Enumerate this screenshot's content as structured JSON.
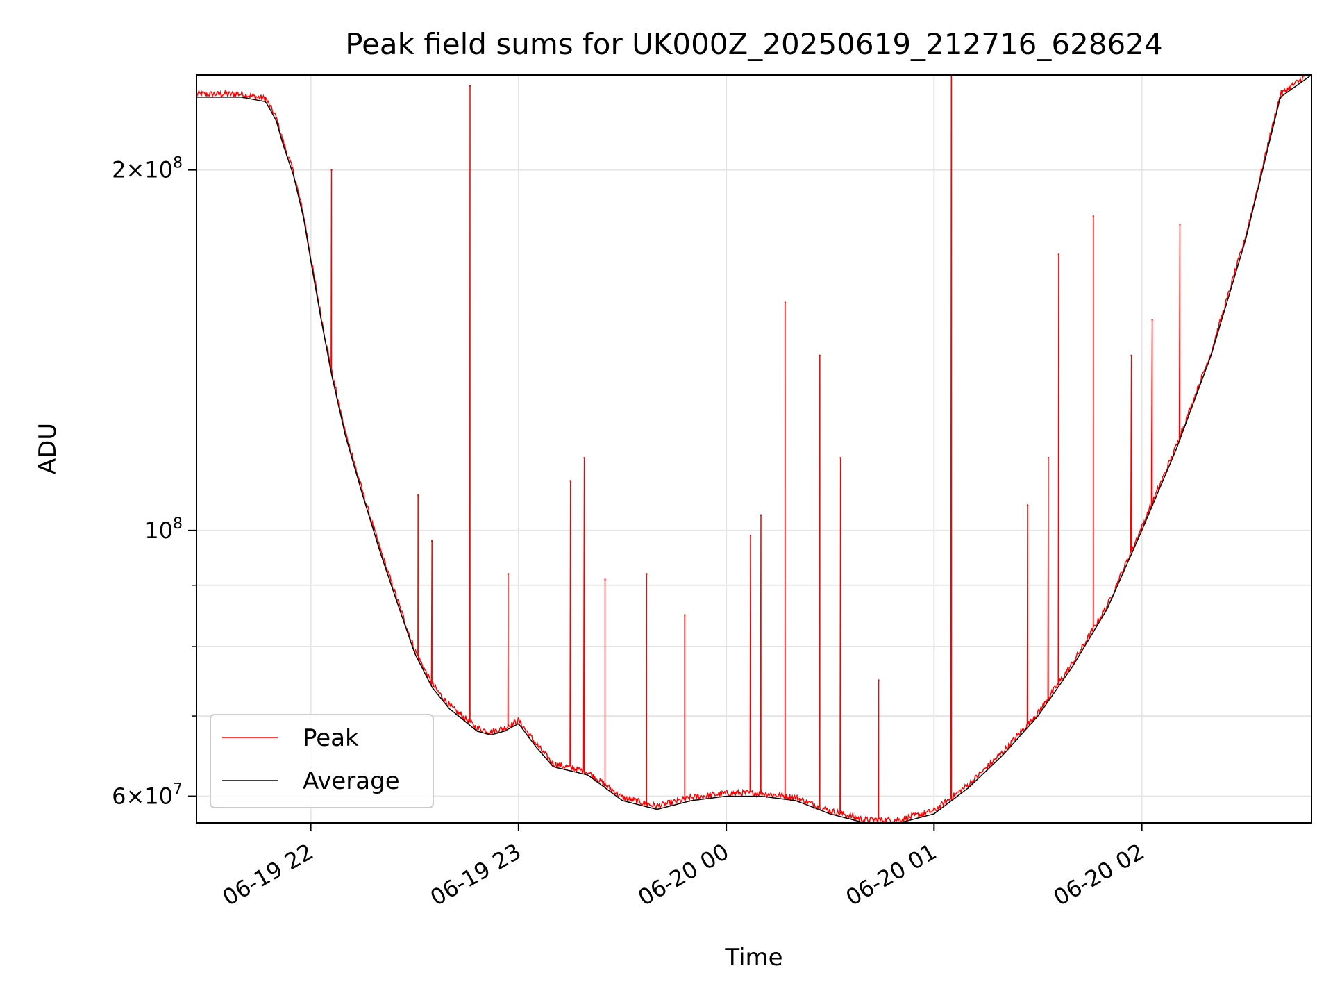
{
  "chart_data": {
    "type": "line",
    "title": "Peak field sums for UK000Z_20250619_212716_628624",
    "xlabel": "Time",
    "ylabel": "ADU",
    "yscale": "log",
    "xlim": [
      "2025-06-19 21:27",
      "2025-06-20 02:49"
    ],
    "ylim": [
      57000000,
      240000000
    ],
    "x_ticks": [
      {
        "t": "2025-06-19 22:00",
        "label": "06-19 22"
      },
      {
        "t": "2025-06-19 23:00",
        "label": "06-19 23"
      },
      {
        "t": "2025-06-20 00:00",
        "label": "06-20 00"
      },
      {
        "t": "2025-06-20 01:00",
        "label": "06-20 01"
      },
      {
        "t": "2025-06-20 02:00",
        "label": "06-20 02"
      }
    ],
    "y_ticks": [
      {
        "value": 60000000,
        "mantissa": "6",
        "exp": "7"
      },
      {
        "value": 100000000,
        "mantissa": "",
        "exp": "8"
      },
      {
        "value": 200000000,
        "mantissa": "2",
        "exp": "8"
      }
    ],
    "y_minor": [
      70000000,
      80000000,
      90000000
    ],
    "grid": true,
    "legend_position": "lower-left",
    "series": [
      {
        "name": "Average",
        "color": "#000000",
        "x": [
          "2025-06-19 21:27",
          "2025-06-19 21:40",
          "2025-06-19 21:47",
          "2025-06-19 21:50",
          "2025-06-19 21:52",
          "2025-06-19 21:55",
          "2025-06-19 21:58",
          "2025-06-19 22:00",
          "2025-06-19 22:03",
          "2025-06-19 22:06",
          "2025-06-19 22:10",
          "2025-06-19 22:15",
          "2025-06-19 22:20",
          "2025-06-19 22:25",
          "2025-06-19 22:30",
          "2025-06-19 22:35",
          "2025-06-19 22:40",
          "2025-06-19 22:44",
          "2025-06-19 22:48",
          "2025-06-19 22:52",
          "2025-06-19 22:56",
          "2025-06-19 23:00",
          "2025-06-19 23:05",
          "2025-06-19 23:10",
          "2025-06-19 23:20",
          "2025-06-19 23:30",
          "2025-06-19 23:40",
          "2025-06-19 23:50",
          "2025-06-20 00:00",
          "2025-06-20 00:10",
          "2025-06-20 00:20",
          "2025-06-20 00:30",
          "2025-06-20 00:40",
          "2025-06-20 00:50",
          "2025-06-20 01:00",
          "2025-06-20 01:10",
          "2025-06-20 01:20",
          "2025-06-20 01:30",
          "2025-06-20 01:40",
          "2025-06-20 01:50",
          "2025-06-20 02:00",
          "2025-06-20 02:10",
          "2025-06-20 02:20",
          "2025-06-20 02:30",
          "2025-06-20 02:40",
          "2025-06-20 02:49"
        ],
        "y": [
          230000000,
          230000000,
          228000000,
          220000000,
          210000000,
          198000000,
          182000000,
          168000000,
          150000000,
          135000000,
          120000000,
          107000000,
          96000000,
          87000000,
          79000000,
          74000000,
          71000000,
          69500000,
          68000000,
          67500000,
          68000000,
          69000000,
          66000000,
          63500000,
          62500000,
          59500000,
          58500000,
          59500000,
          60000000,
          60000000,
          59500000,
          58000000,
          57000000,
          57000000,
          58000000,
          61000000,
          65000000,
          70000000,
          77000000,
          86000000,
          100000000,
          117000000,
          140000000,
          175000000,
          230000000,
          240000000
        ]
      },
      {
        "name": "Peak",
        "color": "#ff0000",
        "x": [
          "2025-06-19 22:06",
          "2025-06-19 22:12",
          "2025-06-19 22:31",
          "2025-06-19 22:35",
          "2025-06-19 22:46",
          "2025-06-19 22:57",
          "2025-06-19 23:15",
          "2025-06-19 23:19",
          "2025-06-19 23:25",
          "2025-06-19 23:37",
          "2025-06-19 23:48",
          "2025-06-20 00:07",
          "2025-06-20 00:10",
          "2025-06-20 00:17",
          "2025-06-20 00:27",
          "2025-06-20 00:33",
          "2025-06-20 00:44",
          "2025-06-20 01:05",
          "2025-06-20 01:27",
          "2025-06-20 01:33",
          "2025-06-20 01:36",
          "2025-06-20 01:46",
          "2025-06-20 01:57",
          "2025-06-20 02:03",
          "2025-06-20 02:11"
        ],
        "y": [
          200000000,
          116000000,
          107000000,
          98000000,
          235000000,
          92000000,
          110000000,
          115000000,
          91000000,
          92000000,
          85000000,
          99000000,
          103000000,
          155000000,
          140000000,
          115000000,
          75000000,
          240000000,
          105000000,
          115000000,
          170000000,
          183000000,
          140000000,
          150000000,
          180000000
        ]
      }
    ]
  }
}
